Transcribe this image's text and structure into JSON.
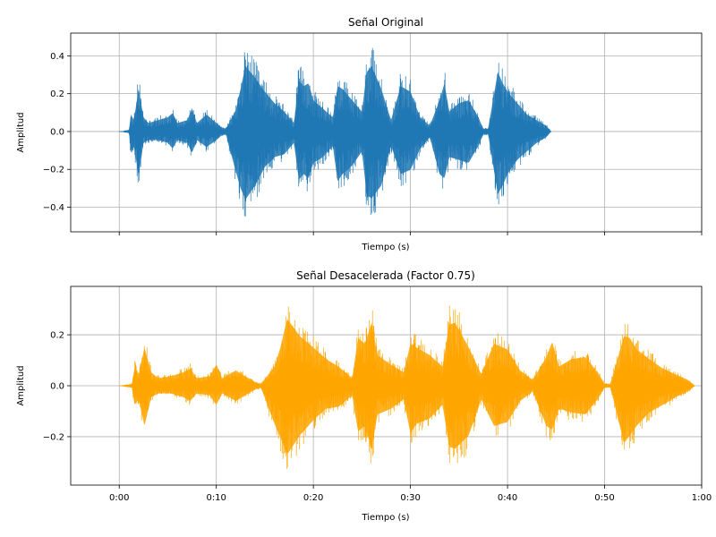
{
  "chart_data": [
    {
      "type": "area",
      "title": "Señal Original",
      "xlabel": "Tiempo (s)",
      "ylabel": "Amplitud",
      "xlim": [
        -5,
        60
      ],
      "ylim": [
        -0.53,
        0.52
      ],
      "y_ticks": [
        -0.4,
        -0.2,
        0.0,
        0.2,
        0.4
      ],
      "y_tick_labels": [
        "−0.4",
        "−0.2",
        "0.0",
        "0.2",
        "0.4"
      ],
      "x_ticks": [
        0,
        10,
        20,
        30,
        40,
        50,
        60
      ],
      "x_tick_labels_shown": false,
      "grid": true,
      "color": "#1f77b4",
      "duration_s": 44.5,
      "series": [
        {
          "envelope_time_s": [
            0,
            1.0,
            1.2,
            1.5,
            2.0,
            2.5,
            3.0,
            4.0,
            5.0,
            5.5,
            6.0,
            7.0,
            7.5,
            8.0,
            9.0,
            10.0,
            10.5,
            11.0,
            12.0,
            12.5,
            13.0,
            14.0,
            15.0,
            16.0,
            17.0,
            18.0,
            18.5,
            19.0,
            19.5,
            20.0,
            21.0,
            22.0,
            22.5,
            23.0,
            24.0,
            25.0,
            25.5,
            26.0,
            27.0,
            28.0,
            29.0,
            30.0,
            31.0,
            32.0,
            33.0,
            33.5,
            34.0,
            35.0,
            36.0,
            37.0,
            37.5,
            38.0,
            39.0,
            39.5,
            40.0,
            41.0,
            42.0,
            43.0,
            44.0,
            44.5
          ],
          "envelope_max": [
            0.0,
            0.01,
            0.12,
            0.08,
            0.3,
            0.1,
            0.06,
            0.08,
            0.1,
            0.13,
            0.06,
            0.08,
            0.16,
            0.06,
            0.12,
            0.06,
            0.03,
            0.02,
            0.15,
            0.3,
            0.46,
            0.38,
            0.28,
            0.2,
            0.14,
            0.06,
            0.36,
            0.32,
            0.34,
            0.22,
            0.16,
            0.1,
            0.32,
            0.3,
            0.22,
            0.14,
            0.42,
            0.46,
            0.3,
            0.08,
            0.32,
            0.28,
            0.1,
            0.04,
            0.22,
            0.34,
            0.14,
            0.2,
            0.22,
            0.1,
            0.02,
            0.02,
            0.42,
            0.34,
            0.28,
            0.2,
            0.12,
            0.08,
            0.04,
            0.0
          ],
          "envelope_min": [
            0.0,
            -0.01,
            -0.14,
            -0.1,
            -0.31,
            -0.08,
            -0.06,
            -0.06,
            -0.08,
            -0.12,
            -0.06,
            -0.08,
            -0.15,
            -0.06,
            -0.11,
            -0.06,
            -0.03,
            -0.02,
            -0.28,
            -0.4,
            -0.48,
            -0.38,
            -0.25,
            -0.18,
            -0.16,
            -0.08,
            -0.34,
            -0.3,
            -0.33,
            -0.22,
            -0.18,
            -0.1,
            -0.35,
            -0.3,
            -0.24,
            -0.14,
            -0.45,
            -0.47,
            -0.38,
            -0.1,
            -0.3,
            -0.27,
            -0.12,
            -0.04,
            -0.3,
            -0.33,
            -0.18,
            -0.2,
            -0.22,
            -0.1,
            -0.02,
            -0.02,
            -0.44,
            -0.38,
            -0.3,
            -0.2,
            -0.14,
            -0.08,
            -0.04,
            0.0
          ]
        }
      ]
    },
    {
      "type": "area",
      "title": "Señal Desacelerada (Factor 0.75)",
      "xlabel": "Tiempo (s)",
      "ylabel": "Amplitud",
      "xlim": [
        -5,
        60
      ],
      "ylim": [
        -0.39,
        0.39
      ],
      "y_ticks": [
        -0.2,
        0.0,
        0.2
      ],
      "y_tick_labels": [
        "−0.2",
        "0.0",
        "0.2"
      ],
      "x_ticks": [
        0,
        10,
        20,
        30,
        40,
        50,
        60
      ],
      "x_tick_labels": [
        "0:00",
        "0:10",
        "0:20",
        "0:30",
        "0:40",
        "0:50",
        "1:00"
      ],
      "grid": true,
      "color": "#ffa500",
      "duration_s": 59.3,
      "series": [
        {
          "envelope_time_s": [
            0,
            1.3,
            1.6,
            2.0,
            2.6,
            3.3,
            4.0,
            5.3,
            6.6,
            7.3,
            8.0,
            9.3,
            10.0,
            10.6,
            12.0,
            13.3,
            14.0,
            14.6,
            16.0,
            16.6,
            17.3,
            18.6,
            20.0,
            21.3,
            22.6,
            24.0,
            24.6,
            25.3,
            26.0,
            26.6,
            28.0,
            29.3,
            30.0,
            30.6,
            32.0,
            33.3,
            34.0,
            34.6,
            36.0,
            37.3,
            38.6,
            40.0,
            41.3,
            42.6,
            44.0,
            44.6,
            45.3,
            46.6,
            48.0,
            49.3,
            50.0,
            50.6,
            52.0,
            52.6,
            53.3,
            54.6,
            56.0,
            57.3,
            58.6,
            59.3
          ],
          "envelope_max": [
            0.0,
            0.01,
            0.1,
            0.06,
            0.2,
            0.07,
            0.04,
            0.05,
            0.07,
            0.09,
            0.04,
            0.05,
            0.11,
            0.04,
            0.08,
            0.04,
            0.02,
            0.01,
            0.1,
            0.2,
            0.35,
            0.26,
            0.2,
            0.14,
            0.1,
            0.04,
            0.25,
            0.22,
            0.33,
            0.16,
            0.11,
            0.07,
            0.22,
            0.2,
            0.16,
            0.1,
            0.32,
            0.33,
            0.2,
            0.06,
            0.22,
            0.19,
            0.08,
            0.03,
            0.15,
            0.23,
            0.1,
            0.14,
            0.15,
            0.07,
            0.01,
            0.01,
            0.26,
            0.25,
            0.19,
            0.14,
            0.09,
            0.06,
            0.03,
            0.0
          ],
          "envelope_min": [
            0.0,
            -0.01,
            -0.1,
            -0.07,
            -0.21,
            -0.06,
            -0.04,
            -0.04,
            -0.06,
            -0.08,
            -0.04,
            -0.05,
            -0.1,
            -0.04,
            -0.08,
            -0.04,
            -0.02,
            -0.01,
            -0.2,
            -0.27,
            -0.36,
            -0.26,
            -0.18,
            -0.12,
            -0.11,
            -0.05,
            -0.24,
            -0.21,
            -0.33,
            -0.15,
            -0.12,
            -0.07,
            -0.25,
            -0.2,
            -0.17,
            -0.1,
            -0.32,
            -0.33,
            -0.26,
            -0.07,
            -0.21,
            -0.19,
            -0.08,
            -0.03,
            -0.21,
            -0.23,
            -0.12,
            -0.14,
            -0.15,
            -0.07,
            -0.01,
            -0.01,
            -0.3,
            -0.26,
            -0.21,
            -0.14,
            -0.1,
            -0.06,
            -0.03,
            0.0
          ]
        }
      ]
    }
  ]
}
